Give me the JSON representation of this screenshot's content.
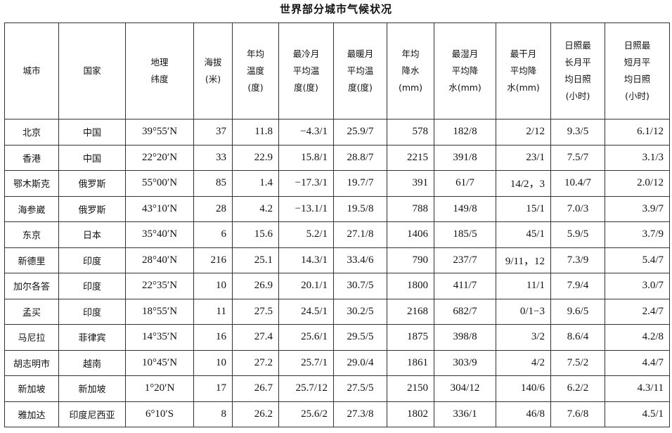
{
  "title": "世界部分城市气候状况",
  "headers": [
    "城市",
    "国家",
    "地理\n纬度",
    "海拔\n(米)",
    "年均\n温度\n(度)",
    "最冷月\n平均温\n度(度)",
    "最暖月\n平均温\n度(度)",
    "年均\n降水\n(mm)",
    "最湿月\n平均降\n水(mm)",
    "最干月\n平均降\n水(mm)",
    "日照最\n长月平\n均日照\n(小时)",
    "日照最\n短月平\n均日照\n(小时)"
  ],
  "rows": [
    [
      "北京",
      "中国",
      "39°55′N",
      "37",
      "11.8",
      "−4.3/1",
      "25.9/7",
      "578",
      "182/8",
      "2/12",
      "9.3/5",
      "6.1/12"
    ],
    [
      "香港",
      "中国",
      "22°20′N",
      "33",
      "22.9",
      "15.8/1",
      "28.8/7",
      "2215",
      "391/8",
      "23/1",
      "7.5/7",
      "3.1/3"
    ],
    [
      "鄂木斯克",
      "俄罗斯",
      "55°00′N",
      "85",
      "1.4",
      "−17.3/1",
      "19.7/7",
      "391",
      "61/7",
      "14/2，3",
      "10.4/7",
      "2.0/12"
    ],
    [
      "海参崴",
      "俄罗斯",
      "43°10′N",
      "28",
      "4.2",
      "−13.1/1",
      "19.5/8",
      "788",
      "149/8",
      "15/1",
      "7.0/3",
      "3.9/7"
    ],
    [
      "东京",
      "日本",
      "35°40′N",
      "6",
      "15.6",
      "5.2/1",
      "27.1/8",
      "1406",
      "185/5",
      "45/1",
      "5.9/5",
      "3.7/9"
    ],
    [
      "新德里",
      "印度",
      "28°40′N",
      "216",
      "25.1",
      "14.3/1",
      "33.4/6",
      "790",
      "237/7",
      "9/11，12",
      "7.3/9",
      "5.4/7"
    ],
    [
      "加尔各答",
      "印度",
      "22°35′N",
      "10",
      "26.9",
      "20.1/1",
      "30.7/5",
      "1800",
      "411/7",
      "11/1",
      "7.9/4",
      "3.0/7"
    ],
    [
      "孟买",
      "印度",
      "18°55′N",
      "11",
      "27.5",
      "24.5/1",
      "30.2/5",
      "2168",
      "682/7",
      "0/1−3",
      "9.6/5",
      "2.4/7"
    ],
    [
      "马尼拉",
      "菲律宾",
      "14°35′N",
      "16",
      "27.4",
      "25.6/1",
      "29.5/5",
      "1875",
      "398/8",
      "3/2",
      "8.6/4",
      "4.2/8"
    ],
    [
      "胡志明市",
      "越南",
      "10°45′N",
      "10",
      "27.2",
      "25.7/1",
      "29.0/4",
      "1861",
      "303/9",
      "4/2",
      "7.5/2",
      "4.4/7"
    ],
    [
      "新加坡",
      "新加坡",
      "1°20′N",
      "17",
      "26.7",
      "25.7/12",
      "27.5/5",
      "2150",
      "304/12",
      "140/6",
      "6.2/2",
      "4.3/11"
    ],
    [
      "雅加达",
      "印度尼西亚",
      "6°10′S",
      "8",
      "26.2",
      "25.6/2",
      "27.3/8",
      "1802",
      "336/1",
      "46/8",
      "7.6/8",
      "4.5/1"
    ]
  ]
}
